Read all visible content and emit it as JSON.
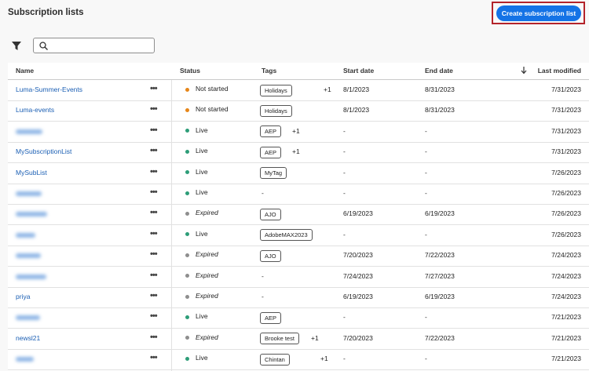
{
  "header": {
    "title": "Subscription lists",
    "button": "Create subscription list"
  },
  "table": {
    "columns": [
      "Name",
      "Status",
      "Tags",
      "Start date",
      "End date",
      "Last modified"
    ],
    "rows": [
      {
        "name": "Luma-Summer-Events",
        "status": "Not started",
        "status_color": "#e68619",
        "tag": "Holidays",
        "tagged": true,
        "more": "+1",
        "start": "8/1/2023",
        "end": "8/31/2023",
        "modified": "7/31/2023"
      },
      {
        "name": "Luma-events",
        "status": "Not started",
        "status_color": "#e68619",
        "tag": "Holidays",
        "tagged": true,
        "more": null,
        "start": "8/1/2023",
        "end": "8/31/2023",
        "modified": "7/31/2023"
      },
      {
        "name": null,
        "status": "Live",
        "status_color": "#2d9d78",
        "tag": "AEP",
        "tagged": true,
        "more": "+1",
        "start": "-",
        "end": "-",
        "modified": "7/31/2023"
      },
      {
        "name": "MySubscriptionList",
        "status": "Live",
        "status_color": "#2d9d78",
        "tag": "AEP",
        "tagged": true,
        "more": "+1",
        "start": "-",
        "end": "-",
        "modified": "7/31/2023"
      },
      {
        "name": "MySubList",
        "status": "Live",
        "status_color": "#2d9d78",
        "tag": "MyTag",
        "tagged": true,
        "more": null,
        "start": "-",
        "end": "-",
        "modified": "7/26/2023"
      },
      {
        "name": null,
        "status": "Live",
        "status_color": "#2d9d78",
        "tag": "-",
        "tagged": false,
        "more": null,
        "start": "-",
        "end": "-",
        "modified": "7/26/2023"
      },
      {
        "name": null,
        "status": "Expired",
        "status_color": "#8e8e8e",
        "tag": "AJO",
        "tagged": true,
        "more": null,
        "start": "6/19/2023",
        "end": "6/19/2023",
        "modified": "7/26/2023"
      },
      {
        "name": null,
        "status": "Live",
        "status_color": "#2d9d78",
        "tag": "AdobeMAX2023",
        "tagged": true,
        "more": null,
        "start": "-",
        "end": "-",
        "modified": "7/26/2023"
      },
      {
        "name": null,
        "status": "Expired",
        "status_color": "#8e8e8e",
        "tag": "AJO",
        "tagged": true,
        "more": null,
        "start": "7/20/2023",
        "end": "7/22/2023",
        "modified": "7/24/2023"
      },
      {
        "name": null,
        "status": "Expired",
        "status_color": "#8e8e8e",
        "tag": "-",
        "tagged": false,
        "more": null,
        "start": "7/24/2023",
        "end": "7/27/2023",
        "modified": "7/24/2023"
      },
      {
        "name": "priya",
        "status": "Expired",
        "status_color": "#8e8e8e",
        "tag": "-",
        "tagged": false,
        "more": null,
        "start": "6/19/2023",
        "end": "6/19/2023",
        "modified": "7/24/2023"
      },
      {
        "name": null,
        "status": "Live",
        "status_color": "#2d9d78",
        "tag": "AEP",
        "tagged": true,
        "more": null,
        "start": "-",
        "end": "-",
        "modified": "7/21/2023"
      },
      {
        "name": "newsl21",
        "status": "Expired",
        "status_color": "#8e8e8e",
        "tag": "Brooke test",
        "tagged": true,
        "more": "+1",
        "start": "7/20/2023",
        "end": "7/22/2023",
        "modified": "7/21/2023"
      },
      {
        "name": null,
        "status": "Live",
        "status_color": "#2d9d78",
        "tag": "Chintan",
        "tagged": true,
        "more": "+1",
        "start": "-",
        "end": "-",
        "modified": "7/21/2023"
      }
    ]
  }
}
